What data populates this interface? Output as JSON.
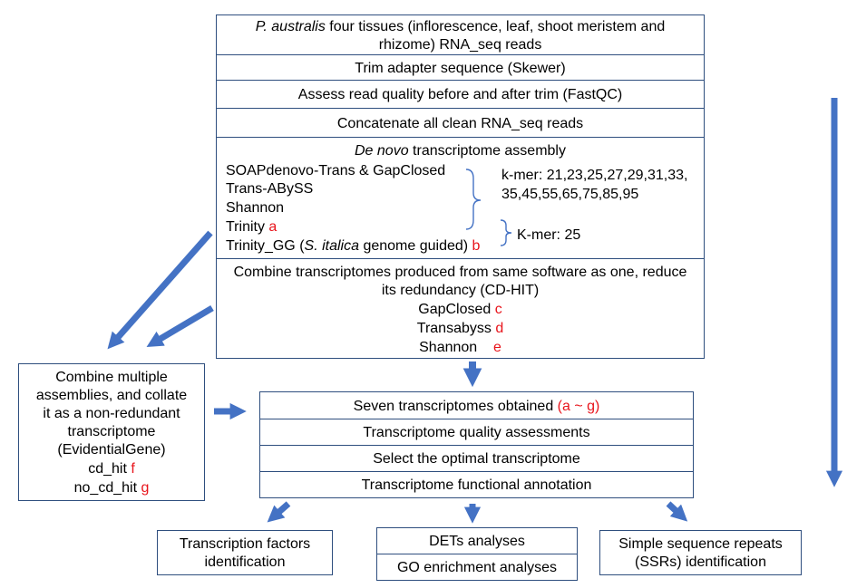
{
  "top_box": {
    "title_italic": "P. australis",
    "title_rest": " four tissues (inflorescence, leaf, shoot meristem and",
    "title_line2": "rhizome) RNA_seq reads"
  },
  "steps": {
    "trim": "Trim adapter sequence (Skewer)",
    "qc": "Assess read quality before and after trim (FastQC)",
    "concat": "Concatenate all clean RNA_seq reads"
  },
  "assembly": {
    "title_italic": "De novo",
    "title_rest": " transcriptome assembly",
    "tools": {
      "soap": "SOAPdenovo-Trans & GapClosed",
      "transabyss": "Trans-ABySS",
      "shannon": "Shannon",
      "trinity": "Trinity",
      "trinity_gg_pre": "Trinity_GG (",
      "trinity_gg_italic": "S. italica",
      "trinity_gg_post": " genome guided)"
    },
    "labels": {
      "trinity": "a",
      "trinity_gg": "b"
    },
    "kmer_line1": "k-mer:  21,23,25,27,29,31,33,",
    "kmer_line2": "35,45,55,65,75,85,95",
    "kmer_b": "K-mer: 25"
  },
  "combine_box": {
    "line1": "Combine transcriptomes produced from same software as one, reduce",
    "line2": "its redundancy (CD-HIT)",
    "items": [
      {
        "name": "GapClosed",
        "label": "c"
      },
      {
        "name": "Transabyss",
        "label": "d"
      },
      {
        "name": "Shannon",
        "label": "e"
      }
    ]
  },
  "evidential_box": {
    "lines": [
      "Combine multiple",
      "assemblies, and collate",
      "it as a non-redundant",
      "transcriptome",
      "(EvidentialGene)"
    ],
    "cd_hit": "cd_hit",
    "cd_hit_label": "f",
    "no_cd_hit": "no_cd_hit",
    "no_cd_hit_label": "g"
  },
  "middle_steps": {
    "seven": "Seven transcriptomes obtained ",
    "seven_label": "(a ~ g)",
    "quality": "Transcriptome quality assessments",
    "select": "Select the optimal transcriptome",
    "annotation": "Transcriptome functional annotation"
  },
  "outputs": {
    "tf_line1": "Transcription factors",
    "tf_line2": "identification",
    "dets": "DETs analyses",
    "go": "GO enrichment analyses",
    "ssr_line1": "Simple sequence repeats",
    "ssr_line2": "(SSRs) identification"
  },
  "colors": {
    "arrow": "#4472c4",
    "border": "#2e4e7e",
    "label_red": "#e8141b"
  }
}
